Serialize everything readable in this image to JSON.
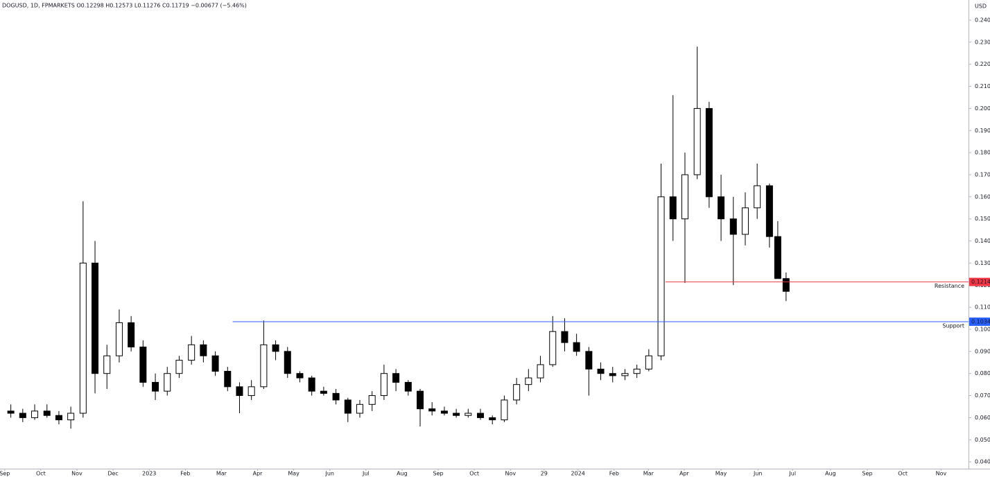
{
  "chart_data": {
    "type": "candlestick",
    "header": "DOGUSD, 1D, FPMARKETS O0.12298 H0.12573 L0.11276 C0.11719 −0.00677 (−5.46%)",
    "unit": "USD",
    "up_color": "#ffffff",
    "down_color": "#000000",
    "edge_color": "#000000",
    "x": [
      0.17,
      0.5,
      0.83,
      1.17,
      1.5,
      1.83,
      2.17,
      2.5,
      2.83,
      3.17,
      3.5,
      3.83,
      4.17,
      4.5,
      4.83,
      5.17,
      5.5,
      5.83,
      6.17,
      6.5,
      6.83,
      7.17,
      7.5,
      7.83,
      8.17,
      8.5,
      8.83,
      9.17,
      9.5,
      9.83,
      10.17,
      10.5,
      10.83,
      11.17,
      11.5,
      11.83,
      12.17,
      12.5,
      12.83,
      13.17,
      13.5,
      13.83,
      14.17,
      14.5,
      14.83,
      15.17,
      15.5,
      15.83,
      16.17,
      16.5,
      16.83,
      17.17,
      17.5,
      17.83,
      18.17,
      18.5,
      18.83,
      19.17,
      19.5,
      19.83,
      20.17,
      20.5,
      20.83,
      21.17,
      21.4,
      21.63
    ],
    "open": [
      0.063,
      0.062,
      0.06,
      0.063,
      0.061,
      0.059,
      0.062,
      0.13,
      0.08,
      0.088,
      0.103,
      0.092,
      0.076,
      0.072,
      0.08,
      0.086,
      0.093,
      0.088,
      0.081,
      0.074,
      0.07,
      0.074,
      0.093,
      0.09,
      0.08,
      0.078,
      0.072,
      0.071,
      0.068,
      0.062,
      0.066,
      0.07,
      0.08,
      0.076,
      0.072,
      0.064,
      0.063,
      0.062,
      0.061,
      0.062,
      0.06,
      0.059,
      0.068,
      0.075,
      0.078,
      0.084,
      0.099,
      0.094,
      0.09,
      0.082,
      0.08,
      0.079,
      0.08,
      0.082,
      0.088,
      0.16,
      0.15,
      0.17,
      0.2,
      0.16,
      0.15,
      0.143,
      0.155,
      0.165,
      0.142,
      0.12298
    ],
    "high": [
      0.066,
      0.064,
      0.066,
      0.066,
      0.063,
      0.065,
      0.158,
      0.14,
      0.093,
      0.109,
      0.106,
      0.095,
      0.08,
      0.083,
      0.088,
      0.097,
      0.095,
      0.09,
      0.083,
      0.076,
      0.077,
      0.104,
      0.095,
      0.092,
      0.081,
      0.079,
      0.074,
      0.073,
      0.069,
      0.068,
      0.072,
      0.084,
      0.082,
      0.077,
      0.073,
      0.067,
      0.065,
      0.064,
      0.064,
      0.064,
      0.061,
      0.07,
      0.078,
      0.082,
      0.088,
      0.106,
      0.105,
      0.098,
      0.092,
      0.085,
      0.083,
      0.082,
      0.084,
      0.091,
      0.175,
      0.206,
      0.18,
      0.228,
      0.203,
      0.17,
      0.16,
      0.162,
      0.175,
      0.166,
      0.149,
      0.12573
    ],
    "low": [
      0.06,
      0.058,
      0.059,
      0.06,
      0.057,
      0.055,
      0.06,
      0.071,
      0.073,
      0.085,
      0.09,
      0.074,
      0.068,
      0.07,
      0.078,
      0.084,
      0.085,
      0.079,
      0.072,
      0.062,
      0.068,
      0.073,
      0.086,
      0.078,
      0.076,
      0.07,
      0.07,
      0.066,
      0.058,
      0.06,
      0.063,
      0.068,
      0.072,
      0.07,
      0.056,
      0.061,
      0.061,
      0.06,
      0.06,
      0.059,
      0.057,
      0.058,
      0.066,
      0.072,
      0.076,
      0.083,
      0.09,
      0.088,
      0.07,
      0.077,
      0.076,
      0.077,
      0.078,
      0.081,
      0.086,
      0.14,
      0.121,
      0.168,
      0.155,
      0.14,
      0.12,
      0.138,
      0.15,
      0.137,
      0.123,
      0.11276
    ],
    "close": [
      0.062,
      0.06,
      0.063,
      0.061,
      0.059,
      0.062,
      0.13,
      0.08,
      0.088,
      0.103,
      0.092,
      0.076,
      0.072,
      0.08,
      0.086,
      0.093,
      0.088,
      0.081,
      0.074,
      0.07,
      0.074,
      0.093,
      0.09,
      0.08,
      0.078,
      0.072,
      0.071,
      0.068,
      0.062,
      0.066,
      0.07,
      0.08,
      0.076,
      0.072,
      0.064,
      0.063,
      0.062,
      0.061,
      0.062,
      0.06,
      0.059,
      0.068,
      0.075,
      0.078,
      0.084,
      0.099,
      0.094,
      0.09,
      0.082,
      0.08,
      0.079,
      0.08,
      0.082,
      0.088,
      0.16,
      0.15,
      0.17,
      0.2,
      0.16,
      0.15,
      0.143,
      0.155,
      0.165,
      0.142,
      0.12298,
      0.11719
    ],
    "xlim": [
      -0.13,
      26.68
    ],
    "xticks": [
      {
        "value": 0,
        "label": "Sep"
      },
      {
        "value": 1,
        "label": "Oct"
      },
      {
        "value": 2,
        "label": "Nov"
      },
      {
        "value": 3,
        "label": "Dec"
      },
      {
        "value": 4,
        "label": "2023"
      },
      {
        "value": 5,
        "label": "Feb"
      },
      {
        "value": 6,
        "label": "Mar"
      },
      {
        "value": 7,
        "label": "Apr"
      },
      {
        "value": 8,
        "label": "May"
      },
      {
        "value": 9,
        "label": "Jun"
      },
      {
        "value": 10,
        "label": "Jul"
      },
      {
        "value": 11,
        "label": "Aug"
      },
      {
        "value": 12,
        "label": "Sep"
      },
      {
        "value": 13,
        "label": "Oct"
      },
      {
        "value": 14,
        "label": "Nov"
      },
      {
        "value": 14.93,
        "label": "29"
      },
      {
        "value": 15.87,
        "label": "2024"
      },
      {
        "value": 16.87,
        "label": "Feb"
      },
      {
        "value": 17.82,
        "label": "Mar"
      },
      {
        "value": 18.81,
        "label": "Apr"
      },
      {
        "value": 19.83,
        "label": "May"
      },
      {
        "value": 20.85,
        "label": "Jun"
      },
      {
        "value": 21.81,
        "label": "Jul"
      },
      {
        "value": 22.86,
        "label": "Aug"
      },
      {
        "value": 23.88,
        "label": "Sep"
      },
      {
        "value": 24.86,
        "label": "Oct"
      },
      {
        "value": 25.92,
        "label": "Nov"
      }
    ],
    "ylim": [
      0.0369,
      0.2491
    ],
    "yticks": [
      {
        "value": 0.04,
        "label": "0.04000"
      },
      {
        "value": 0.05,
        "label": "0.05000"
      },
      {
        "value": 0.06,
        "label": "0.06000"
      },
      {
        "value": 0.07,
        "label": "0.07000"
      },
      {
        "value": 0.08,
        "label": "0.08000"
      },
      {
        "value": 0.09,
        "label": "0.09000"
      },
      {
        "value": 0.1,
        "label": "0.10000"
      },
      {
        "value": 0.11,
        "label": "0.11000"
      },
      {
        "value": 0.12,
        "label": "0.12000"
      },
      {
        "value": 0.13,
        "label": "0.13000"
      },
      {
        "value": 0.14,
        "label": "0.14000"
      },
      {
        "value": 0.15,
        "label": "0.15000"
      },
      {
        "value": 0.16,
        "label": "0.16000"
      },
      {
        "value": 0.17,
        "label": "0.17000"
      },
      {
        "value": 0.18,
        "label": "0.18000"
      },
      {
        "value": 0.19,
        "label": "0.19000"
      },
      {
        "value": 0.2,
        "label": "0.20000"
      },
      {
        "value": 0.21,
        "label": "0.21000"
      },
      {
        "value": 0.22,
        "label": "0.22000"
      },
      {
        "value": 0.23,
        "label": "0.23000"
      },
      {
        "value": 0.24,
        "label": "0.24000"
      }
    ],
    "lines": [
      {
        "label": "Resistance",
        "value": 0.12145,
        "color": "#f23645",
        "x_start": 18.29
      },
      {
        "label": "Support",
        "value": 0.10345,
        "color": "#2962ff",
        "x_start": 6.31
      }
    ]
  }
}
